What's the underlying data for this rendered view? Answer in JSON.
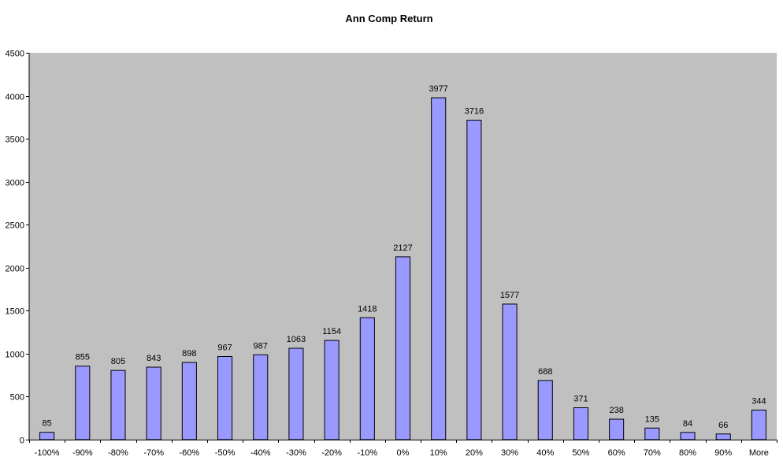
{
  "chart_data": {
    "type": "bar",
    "title": "Ann Comp Return",
    "xlabel": "",
    "ylabel": "",
    "categories": [
      "-100%",
      "-90%",
      "-80%",
      "-70%",
      "-60%",
      "-50%",
      "-40%",
      "-30%",
      "-20%",
      "-10%",
      "0%",
      "10%",
      "20%",
      "30%",
      "40%",
      "50%",
      "60%",
      "70%",
      "80%",
      "90%",
      "More"
    ],
    "values": [
      85,
      855,
      805,
      843,
      898,
      967,
      987,
      1063,
      1154,
      1418,
      2127,
      3977,
      3716,
      1577,
      688,
      371,
      238,
      135,
      84,
      66,
      344
    ],
    "ylim": [
      0,
      4500
    ],
    "yticks": [
      0,
      500,
      1000,
      1500,
      2000,
      2500,
      3000,
      3500,
      4000,
      4500
    ],
    "grid": false,
    "legend": "none",
    "data_labels": true,
    "colors": {
      "bar_fill": "#9999ff",
      "bar_stroke": "#000000",
      "plot_background": "#c0c0c0",
      "page_background": "#ffffff"
    }
  }
}
